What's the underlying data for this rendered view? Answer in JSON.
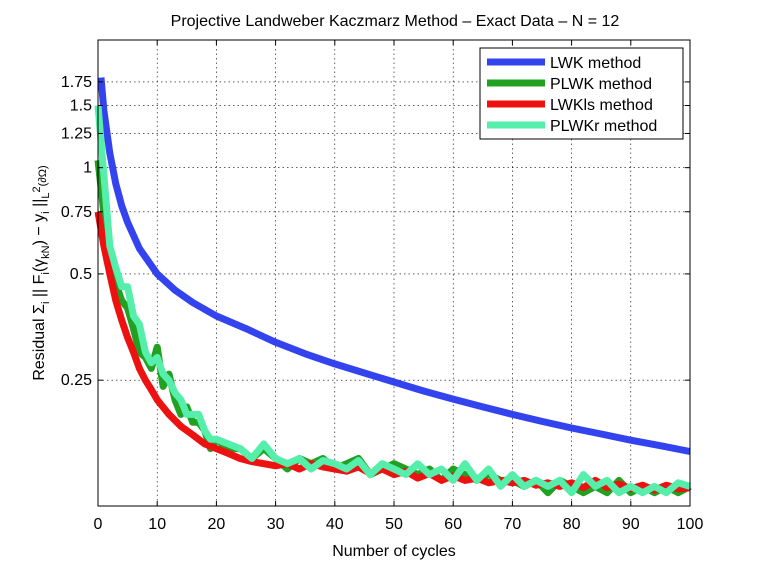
{
  "chart_data": {
    "type": "line",
    "title": "Projective Landweber Kaczmarz Method  –  Exact Data  –  N = 12",
    "xlabel": "Number of cycles",
    "ylabel_parts": {
      "prefix": "Residual  Σ",
      "sub_i1": "i",
      "mid1": "  || F",
      "sub_i2": "i",
      "mid2": "(γ",
      "sub_kN": "kN",
      "mid3": ")  −  y",
      "sub_i3": "i",
      "mid4": " ||",
      "sub_L": "L",
      "sup_2": "2",
      "sub_domain": "(∂Ω)"
    },
    "xlim": [
      0,
      100
    ],
    "ylim": [
      0.11,
      2.3
    ],
    "yscale": "log",
    "grid": true,
    "x_ticks": [
      0,
      10,
      20,
      30,
      40,
      50,
      60,
      70,
      80,
      90,
      100
    ],
    "x_tick_labels": [
      "0",
      "10",
      "20",
      "30",
      "40",
      "50",
      "60",
      "70",
      "80",
      "90",
      "100"
    ],
    "y_ticks": [
      0.25,
      0.5,
      0.75,
      1,
      1.25,
      1.5,
      1.75
    ],
    "y_tick_labels": [
      "0.25",
      "0.5",
      "0.75",
      "1",
      "1.25",
      "1.5",
      "1.75"
    ],
    "legend_position": "top-right",
    "series": [
      {
        "name": "LWK method",
        "color": "#3344ee",
        "x": [
          0.5,
          1,
          2,
          3,
          4,
          5,
          7,
          10,
          13,
          16,
          20,
          25,
          30,
          35,
          40,
          45,
          50,
          55,
          60,
          65,
          70,
          75,
          80,
          85,
          90,
          95,
          100
        ],
        "values": [
          1.8,
          1.45,
          1.1,
          0.9,
          0.78,
          0.7,
          0.59,
          0.5,
          0.45,
          0.415,
          0.38,
          0.35,
          0.32,
          0.297,
          0.278,
          0.262,
          0.247,
          0.233,
          0.221,
          0.21,
          0.2,
          0.191,
          0.183,
          0.176,
          0.169,
          0.163,
          0.157
        ]
      },
      {
        "name": "PLWK method",
        "color": "#22a022",
        "x": [
          0,
          1,
          2,
          3,
          4,
          5,
          6,
          7,
          8,
          9,
          10,
          11,
          12,
          13,
          14,
          15,
          16,
          17,
          18,
          19,
          20,
          22,
          24,
          26,
          28,
          30,
          32,
          34,
          36,
          38,
          40,
          42,
          44,
          46,
          48,
          50,
          52,
          54,
          56,
          58,
          60,
          62,
          64,
          66,
          68,
          70,
          72,
          74,
          76,
          78,
          80,
          82,
          84,
          86,
          88,
          90,
          92,
          94,
          96,
          98,
          100
        ],
        "values": [
          1.05,
          0.74,
          0.58,
          0.47,
          0.42,
          0.4,
          0.35,
          0.3,
          0.29,
          0.27,
          0.31,
          0.24,
          0.26,
          0.22,
          0.2,
          0.21,
          0.19,
          0.19,
          0.18,
          0.16,
          0.17,
          0.16,
          0.16,
          0.15,
          0.16,
          0.15,
          0.14,
          0.15,
          0.145,
          0.15,
          0.14,
          0.145,
          0.15,
          0.135,
          0.14,
          0.145,
          0.14,
          0.135,
          0.14,
          0.13,
          0.14,
          0.135,
          0.13,
          0.135,
          0.13,
          0.13,
          0.125,
          0.13,
          0.12,
          0.13,
          0.125,
          0.12,
          0.125,
          0.12,
          0.13,
          0.12,
          0.125,
          0.12,
          0.125,
          0.12,
          0.125
        ]
      },
      {
        "name": "LWKls method",
        "color": "#ee1111",
        "x": [
          0,
          1,
          2,
          3,
          4,
          5,
          6,
          7,
          8,
          9,
          10,
          12,
          14,
          16,
          18,
          20,
          22,
          24,
          26,
          28,
          30,
          32,
          34,
          36,
          38,
          40,
          42,
          44,
          46,
          48,
          50,
          52,
          54,
          56,
          58,
          60,
          62,
          64,
          66,
          68,
          70,
          72,
          74,
          76,
          78,
          80,
          82,
          84,
          86,
          88,
          90,
          92,
          94,
          96,
          98,
          100
        ],
        "values": [
          0.75,
          0.6,
          0.5,
          0.42,
          0.37,
          0.33,
          0.3,
          0.27,
          0.25,
          0.235,
          0.22,
          0.2,
          0.185,
          0.175,
          0.165,
          0.16,
          0.155,
          0.15,
          0.147,
          0.145,
          0.143,
          0.145,
          0.14,
          0.145,
          0.142,
          0.14,
          0.138,
          0.142,
          0.136,
          0.14,
          0.135,
          0.138,
          0.132,
          0.136,
          0.13,
          0.134,
          0.13,
          0.132,
          0.128,
          0.13,
          0.128,
          0.13,
          0.126,
          0.128,
          0.125,
          0.128,
          0.124,
          0.13,
          0.124,
          0.127,
          0.123,
          0.126,
          0.122,
          0.126,
          0.123,
          0.124
        ]
      },
      {
        "name": "PLWKr method",
        "color": "#55eeaa",
        "x": [
          0,
          1,
          2,
          3,
          4,
          5,
          6,
          7,
          8,
          9,
          10,
          11,
          12,
          13,
          14,
          15,
          16,
          17,
          18,
          19,
          20,
          22,
          24,
          26,
          28,
          30,
          32,
          34,
          36,
          38,
          40,
          42,
          44,
          46,
          48,
          50,
          52,
          54,
          56,
          58,
          60,
          62,
          64,
          66,
          68,
          70,
          72,
          74,
          76,
          78,
          80,
          82,
          84,
          86,
          88,
          90,
          92,
          94,
          96,
          98,
          100
        ],
        "values": [
          1.5,
          0.95,
          0.6,
          0.52,
          0.46,
          0.46,
          0.38,
          0.36,
          0.3,
          0.28,
          0.29,
          0.26,
          0.25,
          0.23,
          0.22,
          0.2,
          0.2,
          0.2,
          0.18,
          0.17,
          0.17,
          0.165,
          0.16,
          0.15,
          0.165,
          0.15,
          0.145,
          0.15,
          0.14,
          0.148,
          0.145,
          0.14,
          0.148,
          0.135,
          0.145,
          0.14,
          0.135,
          0.145,
          0.135,
          0.14,
          0.13,
          0.145,
          0.13,
          0.14,
          0.125,
          0.135,
          0.125,
          0.13,
          0.125,
          0.13,
          0.12,
          0.135,
          0.125,
          0.13,
          0.12,
          0.125,
          0.12,
          0.125,
          0.12,
          0.128,
          0.125
        ]
      }
    ]
  }
}
